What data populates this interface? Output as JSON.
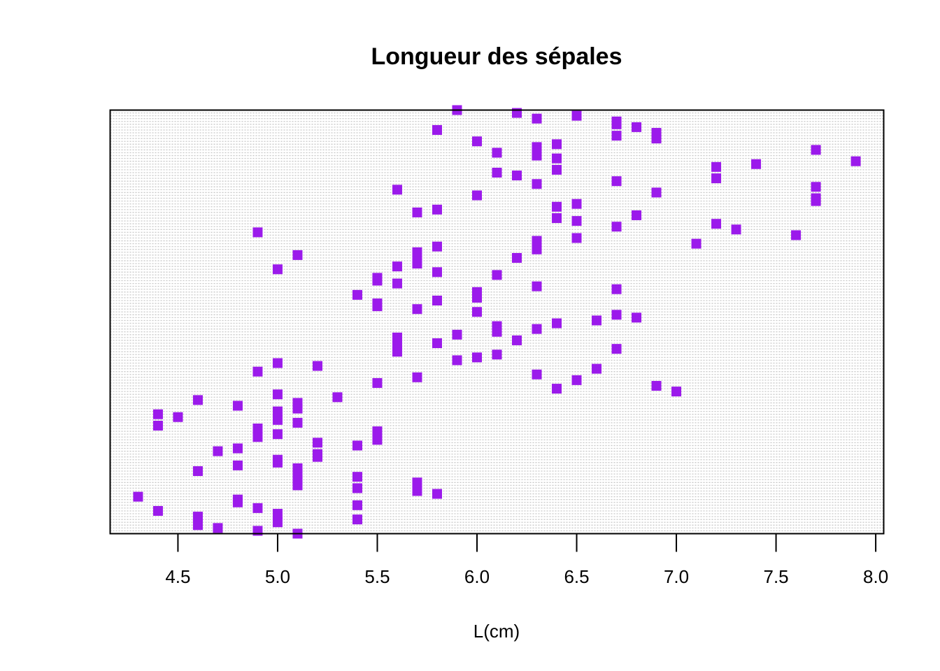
{
  "chart_data": {
    "type": "scatter",
    "title": "Longueur des sépales",
    "xlabel": "L(cm)",
    "ylabel": "",
    "xlim": [
      4.16,
      8.04
    ],
    "ylim": [
      1,
      150
    ],
    "xticks": [
      "4.5",
      "5.0",
      "5.5",
      "6.0",
      "6.5",
      "7.0",
      "7.5",
      "8.0"
    ],
    "grid": "horizontal dotted lines at every observation index",
    "marker": "filled square",
    "color": "#9b1aeb",
    "series": [
      {
        "x": [
          5.1,
          4.9,
          4.7,
          4.6,
          5.0,
          5.4,
          4.6,
          5.0,
          4.4,
          4.9,
          5.4,
          4.8,
          4.8,
          4.3,
          5.8,
          5.7,
          5.4,
          5.1,
          5.7,
          5.1,
          5.4,
          5.1,
          4.6,
          5.1,
          4.8,
          5.0,
          5.0,
          5.2,
          5.2,
          4.7,
          4.8,
          5.4,
          5.2,
          5.5,
          4.9,
          5.0,
          5.5,
          4.9,
          4.4,
          5.1,
          5.0,
          4.5,
          4.4,
          5.0,
          5.1,
          4.8,
          5.1,
          4.6,
          5.3,
          5.0,
          7.0,
          6.4,
          6.9,
          5.5,
          6.5,
          5.7,
          6.3,
          4.9,
          6.6,
          5.2,
          5.0,
          5.9,
          6.0,
          6.1,
          5.6,
          6.7,
          5.6,
          5.8,
          6.2,
          5.6,
          5.9,
          6.1,
          6.3,
          6.1,
          6.4,
          6.6,
          6.8,
          6.7,
          6.0,
          5.7,
          5.5,
          5.5,
          5.8,
          6.0,
          5.4,
          6.0,
          6.7,
          6.3,
          5.6,
          5.5,
          5.5,
          6.1,
          5.8,
          5.0,
          5.6,
          5.7,
          5.7,
          6.2,
          5.1,
          5.7,
          6.3,
          5.8,
          7.1,
          6.3,
          6.5,
          7.6,
          4.9,
          7.3,
          6.7,
          7.2,
          6.5,
          6.4,
          6.8,
          5.7,
          5.8,
          6.4,
          6.5,
          7.7,
          7.7,
          6.0,
          6.9,
          5.6,
          7.7,
          6.3,
          6.7,
          7.2,
          6.2,
          6.1,
          6.4,
          7.2,
          7.4,
          7.9,
          6.4,
          6.3,
          6.1,
          7.7,
          6.3,
          6.4,
          6.0,
          6.9,
          6.7,
          6.9,
          5.8,
          6.8,
          6.7,
          6.7,
          6.3,
          6.5,
          6.2,
          5.9
        ],
        "y_index": "1..150"
      }
    ]
  },
  "colors": {
    "points": "#9b1aeb",
    "grid": "#c8c8c8",
    "axis": "#000000"
  }
}
